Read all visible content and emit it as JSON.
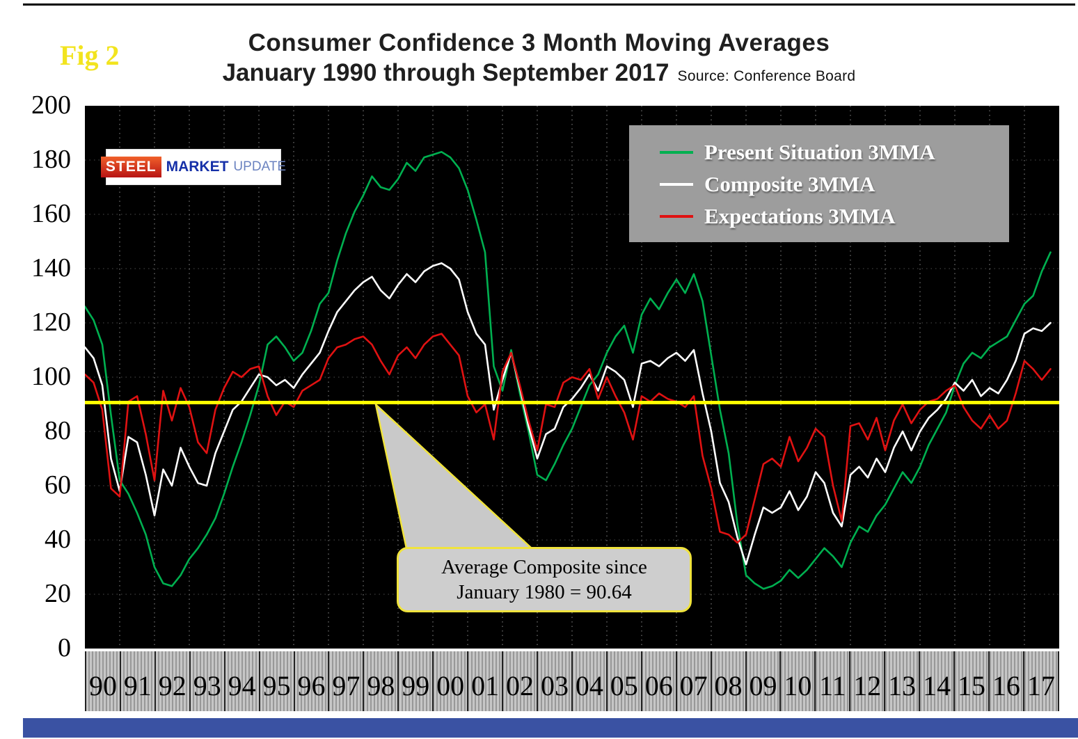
{
  "fig_label": "Fig 2",
  "title": {
    "line1": "Consumer Confidence 3 Month Moving Averages",
    "line2": "January 1990 through September 2017",
    "source": "Source: Conference Board"
  },
  "logo": {
    "part1": "STEEL",
    "part2": "MARKET",
    "part3": "UPDATE"
  },
  "legend": {
    "items": [
      {
        "label": "Present Situation 3MMA",
        "color": "#00b050"
      },
      {
        "label": "Composite 3MMA",
        "color": "#ffffff"
      },
      {
        "label": "Expectations 3MMA",
        "color": "#e01212"
      }
    ]
  },
  "annotation": {
    "line1": "Average Composite since",
    "line2": "January 1980 = 90.64"
  },
  "colors": {
    "plot_background": "#000000",
    "page_background": "#ffffff",
    "legend_background": "#9d9d9d",
    "axis_band_background": "#c6c6c6",
    "bottom_strip": "#3a52a3",
    "fig_label": "#f2e41e",
    "reference_line": "#ffff00",
    "gridline": "#8f8f8f"
  },
  "chart_data": {
    "type": "line",
    "title": "Consumer Confidence 3 Month Moving Averages, January 1990 through September 2017",
    "source": "Conference Board",
    "x_start": 1990.0,
    "x_step": 0.25,
    "x_range": [
      1990,
      2018
    ],
    "ylim": [
      0,
      200
    ],
    "yticks": [
      0,
      20,
      40,
      60,
      80,
      100,
      120,
      140,
      160,
      180,
      200
    ],
    "x_year_labels": [
      "90",
      "91",
      "92",
      "93",
      "94",
      "95",
      "96",
      "97",
      "98",
      "99",
      "00",
      "01",
      "02",
      "03",
      "04",
      "05",
      "06",
      "07",
      "08",
      "09",
      "10",
      "11",
      "12",
      "13",
      "14",
      "15",
      "16",
      "17"
    ],
    "grid": "dotted",
    "legend_position": "top-right",
    "reference_line": {
      "value": 90.64,
      "color": "#ffff00",
      "label": "Average Composite since January 1980 = 90.64"
    },
    "series": [
      {
        "name": "Present Situation 3MMA",
        "color": "#00b050",
        "values": [
          126,
          121,
          112,
          86,
          62,
          57,
          50,
          42,
          30,
          24,
          23,
          27,
          33,
          37,
          42,
          48,
          57,
          67,
          76,
          86,
          97,
          112,
          115,
          111,
          106,
          109,
          117,
          127,
          131,
          143,
          153,
          161,
          167,
          174,
          170,
          169,
          173,
          179,
          176,
          181,
          182,
          183,
          181,
          177,
          169,
          158,
          146,
          104,
          95,
          110,
          94,
          80,
          64,
          62,
          68,
          75,
          81,
          89,
          97,
          101,
          109,
          115,
          119,
          109,
          123,
          129,
          125,
          131,
          136,
          131,
          138,
          128,
          108,
          88,
          72,
          46,
          27,
          24,
          22,
          23,
          25,
          29,
          26,
          29,
          33,
          37,
          34,
          30,
          39,
          45,
          43,
          49,
          53,
          59,
          65,
          61,
          67,
          75,
          81,
          87,
          97,
          105,
          109,
          107,
          111,
          113,
          115,
          121,
          127,
          130,
          139,
          146
        ]
      },
      {
        "name": "Composite 3MMA",
        "color": "#ffffff",
        "values": [
          111,
          107,
          97,
          70,
          58,
          78,
          76,
          64,
          49,
          66,
          60,
          74,
          67,
          61,
          60,
          72,
          80,
          88,
          91,
          96,
          101,
          100,
          97,
          99,
          96,
          101,
          105,
          109,
          117,
          124,
          128,
          132,
          135,
          137,
          132,
          129,
          134,
          138,
          135,
          139,
          141,
          142,
          140,
          136,
          124,
          116,
          112,
          88,
          99,
          109,
          96,
          82,
          70,
          79,
          81,
          89,
          92,
          96,
          101,
          95,
          104,
          102,
          99,
          89,
          105,
          106,
          104,
          107,
          109,
          106,
          110,
          94,
          80,
          61,
          54,
          41,
          31,
          42,
          52,
          50,
          52,
          58,
          51,
          56,
          65,
          61,
          50,
          45,
          64,
          67,
          63,
          70,
          65,
          74,
          80,
          73,
          80,
          85,
          88,
          92,
          98,
          95,
          99,
          93,
          96,
          94,
          99,
          106,
          116,
          118,
          117,
          120
        ]
      },
      {
        "name": "Expectations 3MMA",
        "color": "#e01212",
        "values": [
          101,
          98,
          88,
          59,
          56,
          91,
          93,
          79,
          62,
          95,
          84,
          96,
          89,
          76,
          72,
          88,
          96,
          102,
          100,
          103,
          104,
          93,
          86,
          91,
          89,
          95,
          97,
          99,
          107,
          111,
          112,
          114,
          115,
          112,
          106,
          101,
          108,
          111,
          107,
          112,
          115,
          116,
          112,
          108,
          93,
          87,
          90,
          77,
          102,
          109,
          97,
          84,
          73,
          90,
          89,
          98,
          100,
          99,
          103,
          92,
          100,
          93,
          87,
          77,
          93,
          91,
          94,
          92,
          91,
          89,
          93,
          71,
          59,
          43,
          42,
          39,
          42,
          55,
          68,
          70,
          67,
          78,
          69,
          74,
          81,
          78,
          60,
          47,
          82,
          83,
          77,
          85,
          73,
          84,
          90,
          83,
          88,
          91,
          92,
          95,
          97,
          89,
          84,
          81,
          86,
          81,
          84,
          94,
          106,
          103,
          99,
          103
        ]
      }
    ]
  }
}
